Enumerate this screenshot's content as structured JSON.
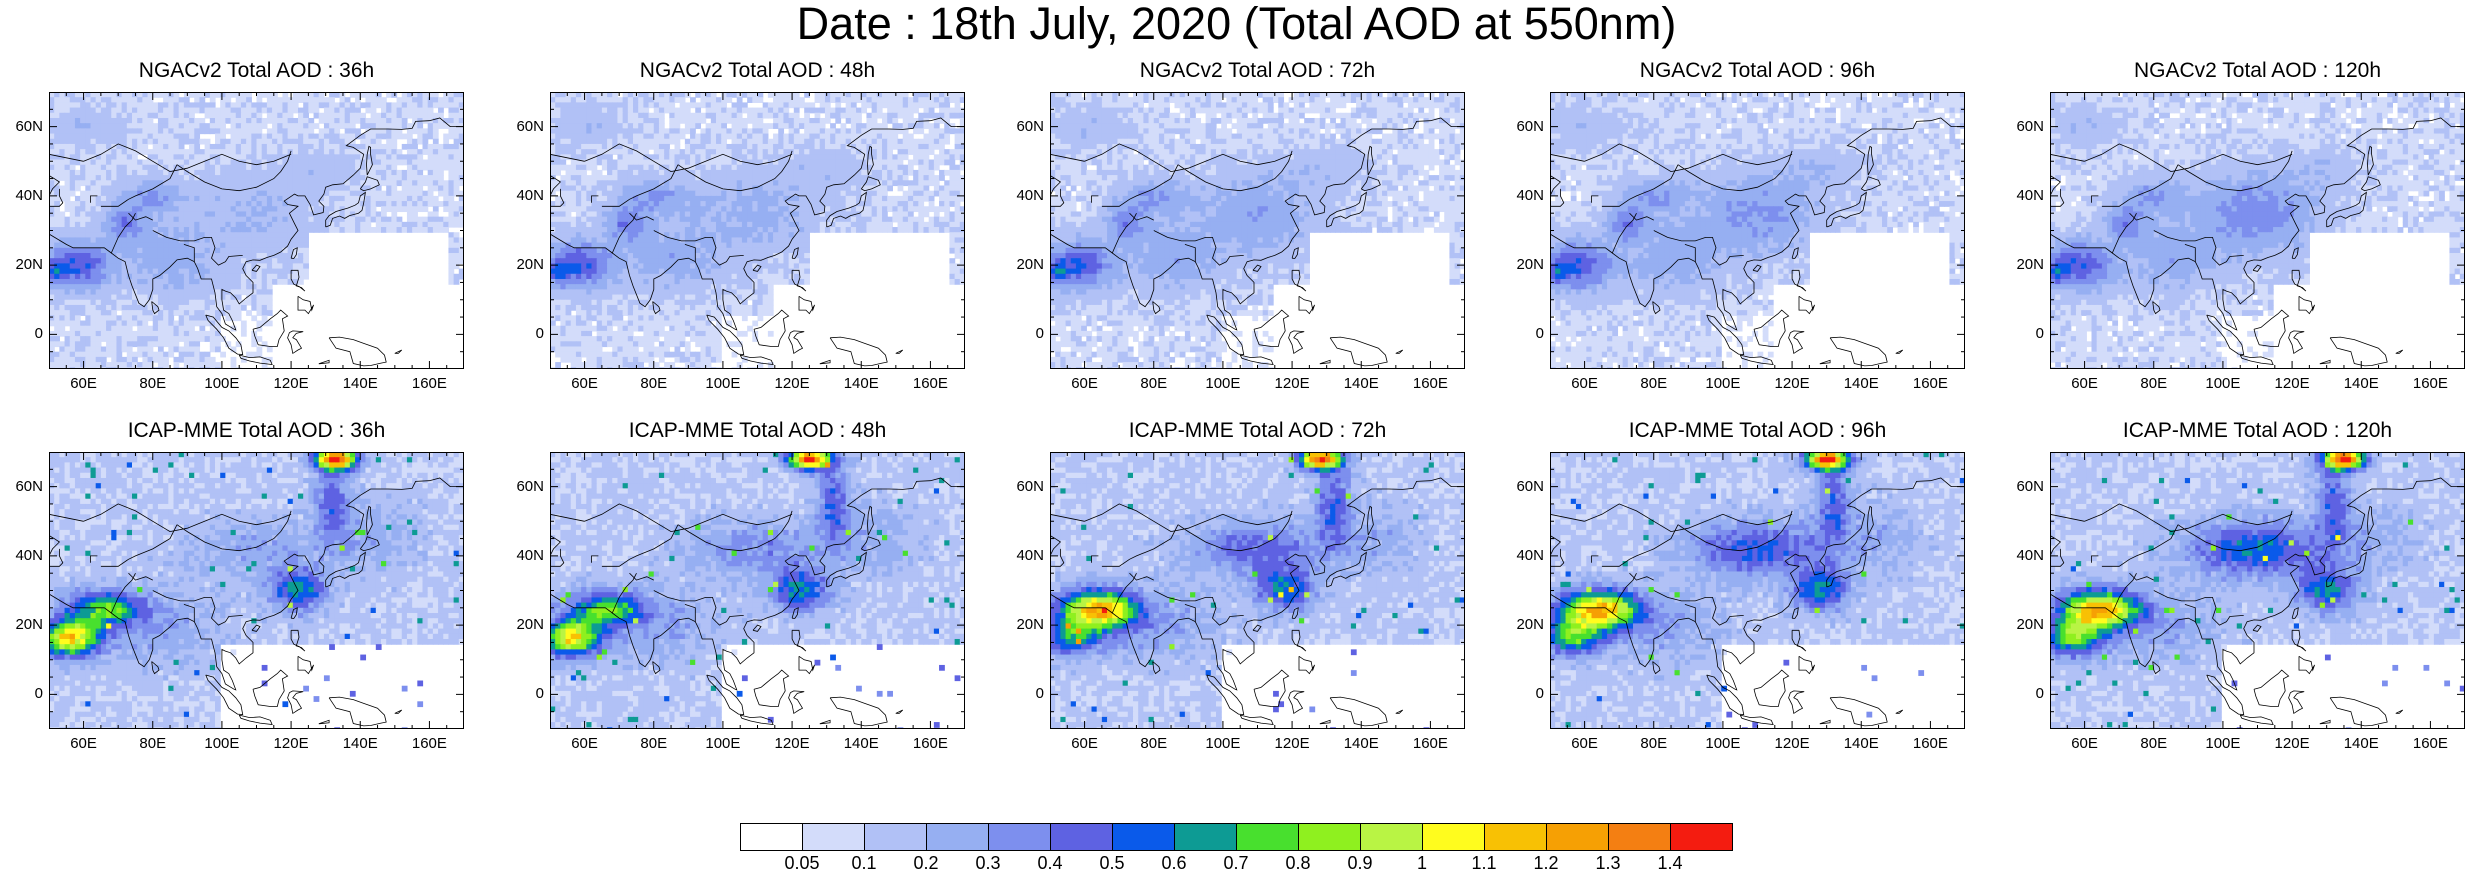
{
  "title": "Date : 18th July, 2020 (Total AOD at 550nm)",
  "panels": [
    {
      "row": 0,
      "col": 0,
      "model": "NGACv2",
      "lead": "36h",
      "title": "NGACv2 Total AOD : 36h"
    },
    {
      "row": 0,
      "col": 1,
      "model": "NGACv2",
      "lead": "48h",
      "title": "NGACv2 Total AOD : 48h"
    },
    {
      "row": 0,
      "col": 2,
      "model": "NGACv2",
      "lead": "72h",
      "title": "NGACv2 Total AOD : 72h"
    },
    {
      "row": 0,
      "col": 3,
      "model": "NGACv2",
      "lead": "96h",
      "title": "NGACv2 Total AOD : 96h"
    },
    {
      "row": 0,
      "col": 4,
      "model": "NGACv2",
      "lead": "120h",
      "title": "NGACv2 Total AOD : 120h"
    },
    {
      "row": 1,
      "col": 0,
      "model": "ICAP-MME",
      "lead": "36h",
      "title": "ICAP-MME Total AOD : 36h"
    },
    {
      "row": 1,
      "col": 1,
      "model": "ICAP-MME",
      "lead": "48h",
      "title": "ICAP-MME Total AOD : 48h"
    },
    {
      "row": 1,
      "col": 2,
      "model": "ICAP-MME",
      "lead": "72h",
      "title": "ICAP-MME Total AOD : 72h"
    },
    {
      "row": 1,
      "col": 3,
      "model": "ICAP-MME",
      "lead": "96h",
      "title": "ICAP-MME Total AOD : 96h"
    },
    {
      "row": 1,
      "col": 4,
      "model": "ICAP-MME",
      "lead": "120h",
      "title": "ICAP-MME Total AOD : 120h"
    }
  ],
  "map_extent": {
    "lon": [
      50,
      170
    ],
    "lat": [
      -10,
      70
    ]
  },
  "lat_ticks": [
    {
      "value": 60,
      "label": "60N"
    },
    {
      "value": 40,
      "label": "40N"
    },
    {
      "value": 20,
      "label": "20N"
    },
    {
      "value": 0,
      "label": "0"
    }
  ],
  "lon_ticks": [
    {
      "value": 60,
      "label": "60E"
    },
    {
      "value": 80,
      "label": "80E"
    },
    {
      "value": 100,
      "label": "100E"
    },
    {
      "value": 120,
      "label": "120E"
    },
    {
      "value": 140,
      "label": "140E"
    },
    {
      "value": 160,
      "label": "160E"
    }
  ],
  "colorbar": {
    "colors": [
      "#ffffff",
      "#d3dcfa",
      "#b1c1f6",
      "#96aff2",
      "#7d8fee",
      "#5e62e2",
      "#0a5aea",
      "#0d9b94",
      "#48e02e",
      "#8ff01f",
      "#b9f444",
      "#fffc1e",
      "#f8c104",
      "#f6a004",
      "#f47f12",
      "#f41c10"
    ],
    "labels": [
      "0.05",
      "0.1",
      "0.2",
      "0.3",
      "0.4",
      "0.5",
      "0.6",
      "0.7",
      "0.8",
      "0.9",
      "1",
      "1.1",
      "1.2",
      "1.3",
      "1.4"
    ]
  }
}
